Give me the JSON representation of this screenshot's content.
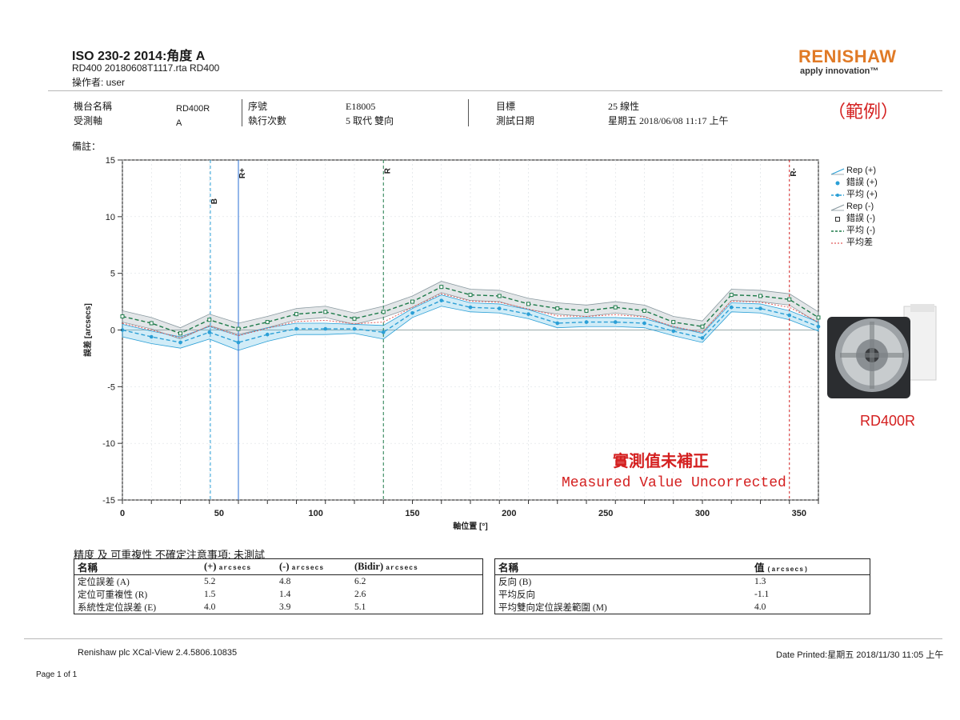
{
  "header": {
    "title": "ISO 230-2 2014:角度 A",
    "file_line": "RD400 20180608T1117.rta RD400",
    "operator_line": "操作者: user",
    "logo_text": "RENISHAW",
    "tagline": "apply innovation™"
  },
  "info": {
    "machine_label": "機台名稱",
    "machine_value": "RD400R",
    "axis_label": "受測軸",
    "axis_value": "A",
    "serial_label": "序號",
    "serial_value": "E18005",
    "runs_label": "執行次數",
    "runs_value": "5 取代 雙向",
    "target_label": "目標",
    "target_value": "25 線性",
    "date_label": "測試日期",
    "date_value": "星期五 2018/06/08 11:17 上午"
  },
  "example_tag": "（範例）",
  "remarks_label": "備註：",
  "legend": [
    {
      "label": "Rep (+)",
      "symbol": "band-plus"
    },
    {
      "label": "錯誤 (+)",
      "symbol": "dot"
    },
    {
      "label": "平均 (+)",
      "symbol": "line-plus"
    },
    {
      "label": "Rep (-)",
      "symbol": "band-minus"
    },
    {
      "label": "錯誤 (-)",
      "symbol": "square"
    },
    {
      "label": "平均 (-)",
      "symbol": "line-minus"
    },
    {
      "label": "平均差",
      "symbol": "line-diff"
    }
  ],
  "model_label": "RD400R",
  "note_zh": "實測值未補正",
  "note_en": "Measured Value Uncorrected",
  "colors": {
    "plus": "#2a9fd6",
    "minus": "#1e7b4a",
    "diff": "#e05a5a",
    "band": "#8a9aa0",
    "red": "#d42020",
    "logo": "#e07a26"
  },
  "chart_data": {
    "type": "line",
    "xlabel": "軸位置 [°]",
    "ylabel": "誤差 [arcsecs]",
    "xlim": [
      0,
      360
    ],
    "ylim": [
      -15,
      15
    ],
    "xticks": [
      0,
      50,
      100,
      150,
      200,
      250,
      300,
      350
    ],
    "yticks": [
      -15,
      -10,
      -5,
      0,
      5,
      10,
      15
    ],
    "x": [
      0,
      15,
      30,
      45,
      60,
      75,
      90,
      105,
      120,
      135,
      150,
      165,
      180,
      195,
      210,
      225,
      240,
      255,
      270,
      285,
      300,
      315,
      330,
      345,
      360
    ],
    "series": [
      {
        "name": "平均 (+)",
        "values": [
          0.0,
          -0.6,
          -1.1,
          -0.2,
          -1.1,
          -0.4,
          0.1,
          0.1,
          0.1,
          -0.2,
          1.5,
          2.6,
          2.0,
          1.9,
          1.4,
          0.6,
          0.7,
          0.7,
          0.6,
          -0.1,
          -0.7,
          2.0,
          1.9,
          1.3,
          0.3
        ]
      },
      {
        "name": "平均 (-)",
        "values": [
          1.2,
          0.6,
          -0.3,
          0.9,
          0.1,
          0.7,
          1.4,
          1.6,
          1.0,
          1.6,
          2.5,
          3.8,
          3.1,
          3.0,
          2.3,
          1.9,
          1.7,
          2.0,
          1.7,
          0.7,
          0.3,
          3.1,
          3.0,
          2.7,
          1.1
        ]
      },
      {
        "name": "平均差",
        "values": [
          0.6,
          0.0,
          -0.7,
          0.35,
          -0.5,
          0.15,
          0.75,
          0.85,
          0.55,
          0.7,
          2.0,
          3.2,
          2.55,
          2.45,
          1.85,
          1.25,
          1.2,
          1.35,
          1.15,
          0.3,
          -0.2,
          2.55,
          2.45,
          2.0,
          0.7
        ]
      }
    ],
    "rep_plus": {
      "upper": [
        0.5,
        -0.1,
        -0.6,
        0.3,
        -0.5,
        0.2,
        0.6,
        0.6,
        0.5,
        0.4,
        1.9,
        3.1,
        2.4,
        2.3,
        1.8,
        1.0,
        1.1,
        1.1,
        1.0,
        0.3,
        -0.3,
        2.4,
        2.3,
        1.7,
        0.7
      ],
      "lower": [
        -0.6,
        -1.2,
        -1.6,
        -0.8,
        -1.8,
        -1.0,
        -0.4,
        -0.4,
        -0.3,
        -0.8,
        1.1,
        2.1,
        1.6,
        1.5,
        1.0,
        0.2,
        0.3,
        0.3,
        0.2,
        -0.5,
        -1.1,
        1.6,
        1.5,
        0.9,
        -0.1
      ]
    },
    "rep_minus": {
      "upper": [
        1.7,
        1.1,
        0.2,
        1.4,
        0.6,
        1.2,
        1.9,
        2.1,
        1.5,
        2.1,
        3.0,
        4.3,
        3.6,
        3.5,
        2.8,
        2.4,
        2.2,
        2.5,
        2.2,
        1.2,
        0.8,
        3.6,
        3.5,
        3.2,
        1.6
      ],
      "lower": [
        0.7,
        0.1,
        -0.8,
        0.4,
        -0.4,
        0.2,
        0.9,
        1.1,
        0.5,
        1.1,
        2.0,
        3.3,
        2.6,
        2.5,
        1.8,
        1.4,
        1.2,
        1.5,
        1.2,
        0.2,
        -0.2,
        2.6,
        2.5,
        2.2,
        0.6
      ]
    },
    "markers": [
      {
        "label": "B",
        "x": 45.5,
        "color": "#2a9fd6",
        "dash": "4,3"
      },
      {
        "label": "R+",
        "x": 60,
        "color": "#2a6fd6",
        "dash": ""
      },
      {
        "label": "R",
        "x": 135,
        "color": "#1e7b4a",
        "dash": "4,3"
      },
      {
        "label": "R-",
        "x": 345,
        "color": "#d42020",
        "dash": "3,3"
      }
    ]
  },
  "results": {
    "caption": "精度 及 可重複性 不確定注意事項: 未測試",
    "left_table": {
      "headers": [
        "名稱",
        "(+)",
        "(-)",
        "(Bidir)"
      ],
      "unit": "arcsecs",
      "rows": [
        [
          "定位誤差 (A)",
          "5.2",
          "4.8",
          "6.2"
        ],
        [
          "定位可重複性 (R)",
          "1.5",
          "1.4",
          "2.6"
        ],
        [
          "系統性定位誤差 (E)",
          "4.0",
          "3.9",
          "5.1"
        ]
      ]
    },
    "right_table": {
      "headers": [
        "名稱",
        "值"
      ],
      "unit": "(arcsecs)",
      "rows": [
        [
          "反向 (B)",
          "1.3"
        ],
        [
          "平均反向",
          "-1.1"
        ],
        [
          "平均雙向定位誤差範圍 (M)",
          "4.0"
        ]
      ]
    }
  },
  "footer": {
    "software": "Renishaw plc XCal-View 2.4.5806.10835",
    "date_printed": "Date Printed:星期五 2018/11/30 11:05 上午",
    "page": "Page 1 of 1"
  }
}
